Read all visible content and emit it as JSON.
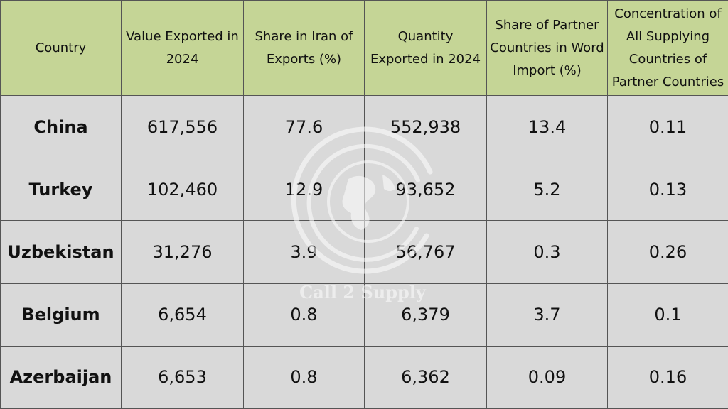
{
  "chart_data": {
    "type": "table",
    "columns": [
      "Country",
      "Value Exported in 2024",
      "Share in Iran of Exports (%)",
      "Quantity Exported in 2024",
      "Share of Partner Countries in Word Import (%)",
      "Concentration of All Supplying Countries of Partner Countries"
    ],
    "rows": [
      [
        "China",
        "617,556",
        "77.6",
        "552,938",
        "13.4",
        "0.11"
      ],
      [
        "Turkey",
        "102,460",
        "12.9",
        "93,652",
        "5.2",
        "0.13"
      ],
      [
        "Uzbekistan",
        "31,276",
        "3.9",
        "56,767",
        "0.3",
        "0.26"
      ],
      [
        "Belgium",
        "6,654",
        "0.8",
        "6,379",
        "3.7",
        "0.1"
      ],
      [
        "Azerbaijan",
        "6,653",
        "0.8",
        "6,362",
        "0.09",
        "0.16"
      ]
    ]
  },
  "colors": {
    "header_bg": "#c5d596",
    "cell_bg": "#d9d9d9",
    "border": "#555555"
  },
  "watermark": {
    "text": "Call 2 Supply",
    "icon": "globe-logo-icon"
  }
}
